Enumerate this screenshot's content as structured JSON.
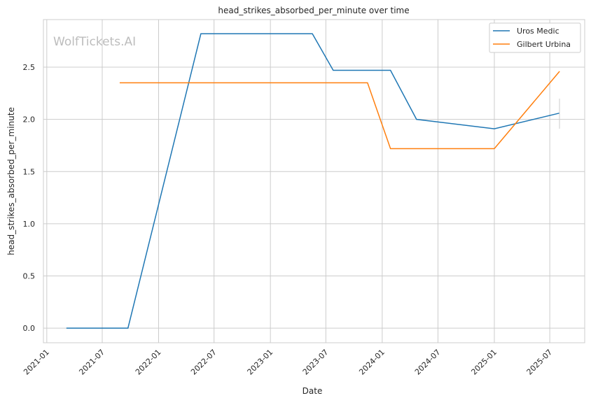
{
  "chart_data": {
    "type": "line",
    "title": "head_strikes_absorbed_per_minute over time",
    "xlabel": "Date",
    "ylabel": "head_strikes_absorbed_per_minute",
    "watermark": "WolfTickets.AI",
    "xlim": [
      "2020-12-21",
      "2025-10-23"
    ],
    "ylim": [
      -0.14,
      2.956
    ],
    "x_ticks": [
      "2021-01",
      "2021-07",
      "2022-01",
      "2022-07",
      "2023-01",
      "2023-07",
      "2024-01",
      "2024-07",
      "2025-01",
      "2025-07"
    ],
    "y_ticks": [
      "0.0",
      "0.5",
      "1.0",
      "1.5",
      "2.0",
      "2.5"
    ],
    "grid": true,
    "legend_position": "top-right",
    "series": [
      {
        "name": "Uros Medic",
        "color": "#1f77b4",
        "x": [
          "2021-03-06",
          "2021-09-23",
          "2022-05-19",
          "2023-05-18",
          "2023-07-25",
          "2024-01-28",
          "2024-04-22",
          "2025-01-01",
          "2025-08-02"
        ],
        "y": [
          0.0,
          0.0,
          2.82,
          2.82,
          2.47,
          2.47,
          2.0,
          1.91,
          2.06
        ]
      },
      {
        "name": "Gilbert Urbina",
        "color": "#ff7f0e",
        "x": [
          "2021-08-27",
          "2023-11-14",
          "2024-01-28",
          "2025-01-01",
          "2025-08-02"
        ],
        "y": [
          2.35,
          2.35,
          1.72,
          1.72,
          2.46
        ]
      }
    ]
  }
}
